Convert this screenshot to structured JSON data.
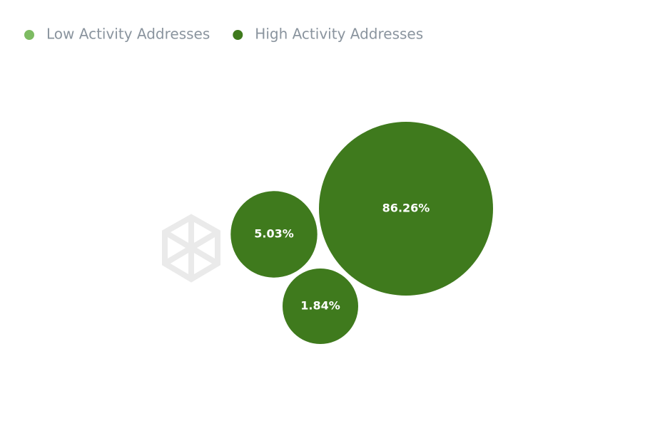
{
  "chart_data": {
    "type": "bubble",
    "series": [
      {
        "name": "Low Activity Addresses",
        "color": "#7dbb62",
        "values": []
      },
      {
        "name": "High Activity Addresses",
        "color": "#3f7a1d",
        "values": [
          86.26,
          5.03,
          1.84
        ],
        "value_labels": [
          "86.26%",
          "5.03%",
          "1.84%"
        ]
      }
    ],
    "legend": "top-left"
  }
}
